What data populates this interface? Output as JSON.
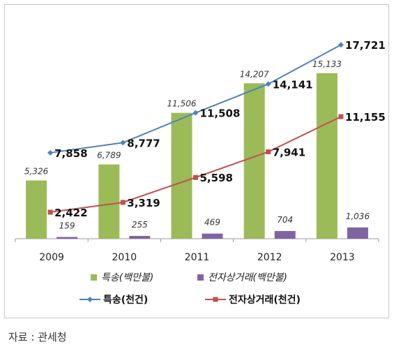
{
  "chart_data": {
    "type": "bar+line",
    "categories": [
      "2009",
      "2010",
      "2011",
      "2012",
      "2013"
    ],
    "bar_series": [
      {
        "name": "특송(백만불)",
        "values": [
          5326,
          6789,
          11506,
          14207,
          15133
        ],
        "labels": [
          "5,326",
          "6,789",
          "11,506",
          "14,207",
          "15,133"
        ],
        "color": "#9bbb59"
      },
      {
        "name": "전자상거래(백만불)",
        "values": [
          159,
          255,
          469,
          704,
          1036
        ],
        "labels": [
          "159",
          "255",
          "469",
          "704",
          "1,036"
        ],
        "color": "#8064a2"
      }
    ],
    "line_series": [
      {
        "name": "특송(천건)",
        "values": [
          7858,
          8777,
          11508,
          14141,
          17721
        ],
        "labels": [
          "7,858",
          "8,777",
          "11,508",
          "14,141",
          "17,721"
        ],
        "color": "#4f81bd",
        "marker": "diamond"
      },
      {
        "name": "전자상거래(천건)",
        "values": [
          2422,
          3319,
          5598,
          7941,
          11155
        ],
        "labels": [
          "2,422",
          "3,319",
          "5,598",
          "7,941",
          "11,155"
        ],
        "color": "#c0504d",
        "marker": "square"
      }
    ],
    "ylim": [
      0,
      18500
    ],
    "grid": false,
    "legend_position": "bottom"
  },
  "source": "자료 : 관세청"
}
